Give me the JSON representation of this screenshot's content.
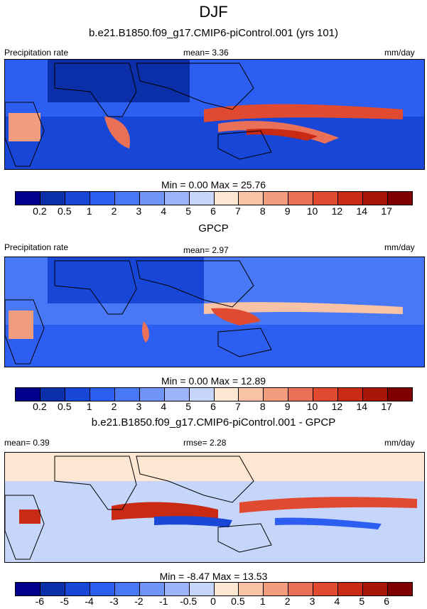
{
  "title": "DJF",
  "panels": [
    {
      "subtitle": "b.e21.B1850.f09_g17.CMIP6-piControl.001 (yrs 101)",
      "left_label": "Precipitation rate",
      "center_label": "mean=   3.36",
      "right_label": "mm/day",
      "minmax": "Min =   0.00 Max =  25.76"
    },
    {
      "subtitle": "GPCP",
      "left_label": "Precipitation rate",
      "center_label": "mean=   2.97",
      "right_label": "mm/day",
      "minmax": "Min =   0.00 Max =  12.89"
    },
    {
      "subtitle": "b.e21.B1850.f09_g17.CMIP6-piControl.001 - GPCP",
      "left_label": "mean=   0.39",
      "center_label": "rmse=   2.28",
      "right_label": "mm/day",
      "minmax": "Min =  -8.47 Max =  13.53"
    }
  ],
  "chart_data": [
    {
      "type": "heatmap",
      "title": "b.e21.B1850.f09_g17.CMIP6-piControl.001 (yrs 101)",
      "variable": "Precipitation rate",
      "units": "mm/day",
      "mean": 3.36,
      "min": 0.0,
      "max": 25.76,
      "levels": [
        "0.2",
        "0.5",
        "1",
        "2",
        "3",
        "4",
        "5",
        "6",
        "7",
        "8",
        "9",
        "10",
        "12",
        "14",
        "17"
      ],
      "colors": [
        "#00008c",
        "#0a2fa8",
        "#1847d8",
        "#2c5ef2",
        "#4878f5",
        "#7094f7",
        "#9cb4f9",
        "#c6d6fb",
        "#fde6d2",
        "#f8c2a6",
        "#f29c7e",
        "#ea7158",
        "#e04a30",
        "#c82a14",
        "#a81608",
        "#7e0000"
      ]
    },
    {
      "type": "heatmap",
      "title": "GPCP",
      "variable": "Precipitation rate",
      "units": "mm/day",
      "mean": 2.97,
      "min": 0.0,
      "max": 12.89,
      "levels": [
        "0.2",
        "0.5",
        "1",
        "2",
        "3",
        "4",
        "5",
        "6",
        "7",
        "8",
        "9",
        "10",
        "12",
        "14",
        "17"
      ],
      "colors": [
        "#00008c",
        "#0a2fa8",
        "#1847d8",
        "#2c5ef2",
        "#4878f5",
        "#7094f7",
        "#9cb4f9",
        "#c6d6fb",
        "#fde6d2",
        "#f8c2a6",
        "#f29c7e",
        "#ea7158",
        "#e04a30",
        "#c82a14",
        "#a81608",
        "#7e0000"
      ]
    },
    {
      "type": "heatmap",
      "title": "b.e21.B1850.f09_g17.CMIP6-piControl.001 - GPCP",
      "units": "mm/day",
      "mean": 0.39,
      "rmse": 2.28,
      "min": -8.47,
      "max": 13.53,
      "levels": [
        "-6",
        "-5",
        "-4",
        "-3",
        "-2",
        "-1",
        "-0.5",
        "0",
        "0.5",
        "1",
        "2",
        "3",
        "4",
        "5",
        "6"
      ],
      "colors": [
        "#00008c",
        "#0a2fa8",
        "#1847d8",
        "#2c5ef2",
        "#4878f5",
        "#7094f7",
        "#9cb4f9",
        "#c6d6fb",
        "#fde6d2",
        "#f8c2a6",
        "#f29c7e",
        "#ea7158",
        "#e04a30",
        "#c82a14",
        "#a81608",
        "#7e0000"
      ]
    }
  ]
}
